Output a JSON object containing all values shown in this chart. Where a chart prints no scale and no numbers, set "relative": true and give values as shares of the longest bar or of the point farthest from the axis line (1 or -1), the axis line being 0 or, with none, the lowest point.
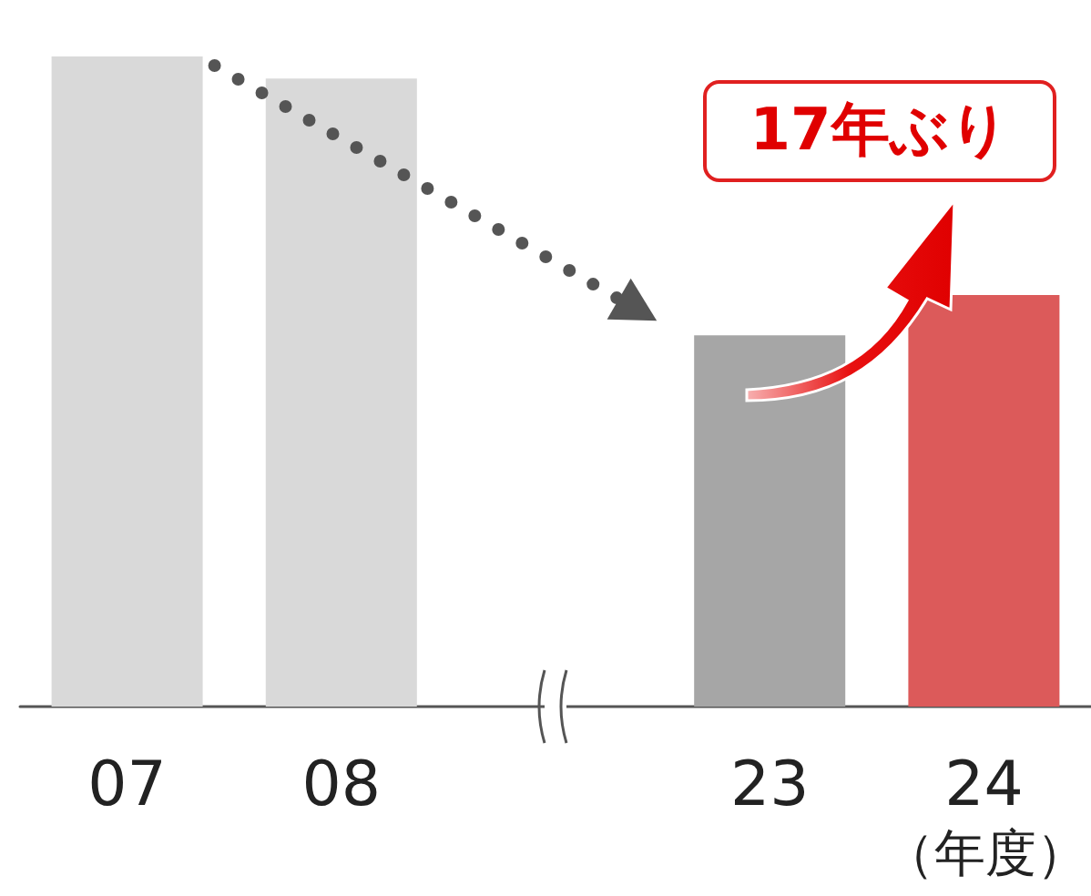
{
  "chart_data": {
    "type": "bar",
    "relative": true,
    "categories": [
      "07",
      "08",
      null,
      "23",
      "24"
    ],
    "values": [
      1,
      0.966,
      null,
      0.571,
      0.633
    ],
    "colors": [
      "#d9d9d9",
      "#d9d9d9",
      "#d9d9d9",
      "#a6a6a6",
      "#dc5a5a"
    ],
    "xlabel": "（年度）",
    "annotations": [
      "17年ぶり"
    ],
    "grid": false
  }
}
